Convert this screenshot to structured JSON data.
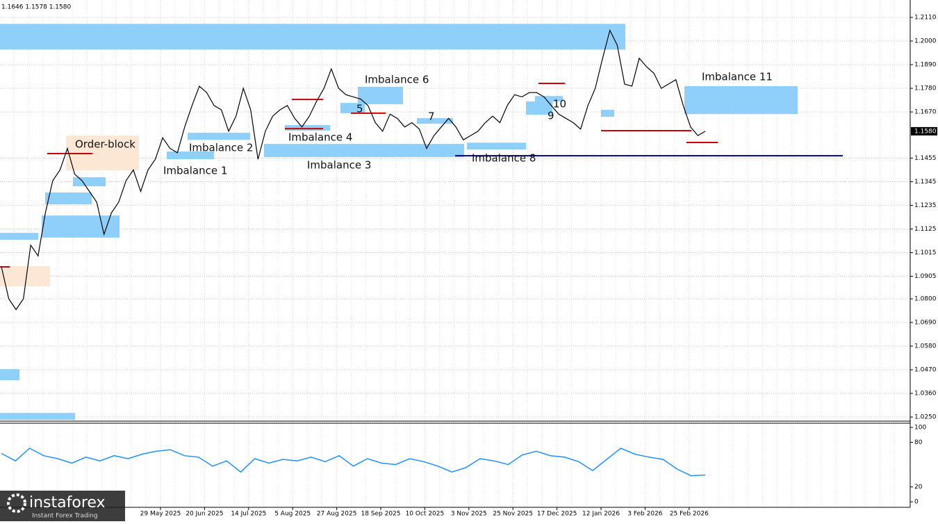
{
  "header": "1.1646 1.1578 1.1580",
  "brand": {
    "name": "instaforex",
    "tagline": "Instant Forex Trading"
  },
  "chart_data": [
    {
      "type": "line",
      "color": "#000000",
      "grid": true,
      "ylim": [
        1.0234,
        1.2191
      ],
      "yticks": [
        {
          "value": 1.211,
          "label": "1.2110"
        },
        {
          "value": 1.2,
          "label": "1.2000"
        },
        {
          "value": 1.189,
          "label": "1.1890"
        },
        {
          "value": 1.178,
          "label": "1.1780"
        },
        {
          "value": 1.167,
          "label": "1.1670"
        },
        1.1455,
        1.1345,
        1.1235,
        1.1125,
        1.1015,
        1.0905,
        {
          "value": 1.08,
          "label": "1.0800"
        },
        {
          "value": 1.069,
          "label": "1.0690"
        },
        {
          "value": 1.058,
          "label": "1.0580"
        },
        {
          "value": 1.047,
          "label": "1.0470"
        },
        {
          "value": 1.036,
          "label": "1.0360"
        },
        {
          "value": 1.025,
          "label": "1.0250"
        }
      ],
      "last_price": {
        "value": 1.158,
        "label": "1.1580"
      },
      "date_labels": [
        "29 May 2025",
        "20 Jun 2025",
        "14 Jul 2025",
        "5 Aug 2025",
        "27 Aug 2025",
        "18 Sep 2025",
        "10 Oct 2025",
        "3 Nov 2025",
        "25 Nov 2025",
        "17 Dec 2025",
        "12 Jan 2026",
        "3 Feb 2026",
        "25 Feb 2026"
      ],
      "values": [
        1.095,
        1.08,
        1.075,
        1.08,
        1.105,
        1.1,
        1.12,
        1.135,
        1.14,
        1.15,
        1.138,
        1.135,
        1.13,
        1.125,
        1.11,
        1.12,
        1.125,
        1.135,
        1.14,
        1.13,
        1.14,
        1.145,
        1.155,
        1.15,
        1.148,
        1.16,
        1.17,
        1.179,
        1.176,
        1.17,
        1.168,
        1.158,
        1.165,
        1.178,
        1.168,
        1.145,
        1.158,
        1.165,
        1.168,
        1.17,
        1.164,
        1.16,
        1.165,
        1.172,
        1.178,
        1.187,
        1.178,
        1.175,
        1.174,
        1.173,
        1.17,
        1.162,
        1.158,
        1.166,
        1.164,
        1.16,
        1.162,
        1.159,
        1.15,
        1.156,
        1.16,
        1.164,
        1.16,
        1.154,
        1.156,
        1.158,
        1.162,
        1.165,
        1.162,
        1.17,
        1.175,
        1.174,
        1.176,
        1.176,
        1.174,
        1.17,
        1.166,
        1.164,
        1.162,
        1.159,
        1.17,
        1.178,
        1.192,
        1.205,
        1.198,
        1.18,
        1.179,
        1.192,
        1.188,
        1.185,
        1.178,
        1.18,
        1.182,
        1.17,
        1.16,
        1.156,
        1.158
      ],
      "zones": [
        {
          "low": 1.196,
          "high": 1.208,
          "color": "#8fd0fa"
        },
        {
          "low": 1.166,
          "high": 1.179,
          "color": "#8fd0fa",
          "label": "Imbalance 11"
        },
        {
          "low": 1.1398,
          "high": 1.156,
          "color": "#fbe7d3",
          "label": "Order-block"
        },
        {
          "low": 1.0858,
          "high": 1.0952,
          "color": "#fbe7d3"
        },
        {
          "low": 1.145,
          "high": 1.1486,
          "color": "#8fd0fa",
          "label": "Imbalance 1"
        },
        {
          "low": 1.154,
          "high": 1.1573,
          "color": "#8fd0fa",
          "label": "Imbalance 2"
        },
        {
          "low": 1.146,
          "high": 1.1521,
          "color": "#8fd0fa",
          "label": "Imbalance 3"
        },
        {
          "low": 1.1583,
          "high": 1.1609,
          "color": "#8fd0fa",
          "label": "Imbalance 4"
        },
        {
          "low": 1.1706,
          "high": 1.1787,
          "color": "#8fd0fa",
          "label": "Imbalance 6"
        },
        {
          "low": 1.1664,
          "high": 1.1712,
          "color": "#8fd0fa",
          "label": "5"
        },
        {
          "low": 1.1615,
          "high": 1.1641,
          "color": "#8fd0fa",
          "label": "7"
        },
        {
          "low": 1.1495,
          "high": 1.1527,
          "color": "#8fd0fa",
          "label": "Imbalance 8"
        },
        {
          "low": 1.1657,
          "high": 1.1719,
          "color": "#8fd0fa",
          "label": "9"
        },
        {
          "low": 1.1719,
          "high": 1.1744,
          "color": "#8fd0fa",
          "label": "10"
        },
        {
          "low": 1.1324,
          "high": 1.1366,
          "color": "#8fd0fa"
        },
        {
          "low": 1.124,
          "high": 1.1295,
          "color": "#8fd0fa"
        },
        {
          "low": 1.1085,
          "high": 1.1188,
          "color": "#8fd0fa"
        },
        {
          "low": 1.1075,
          "high": 1.1107,
          "color": "#8fd0fa"
        },
        {
          "low": 1.0421,
          "high": 1.0473,
          "color": "#8fd0fa"
        },
        {
          "low": 1.0237,
          "high": 1.0269,
          "color": "#8fd0fa"
        },
        {
          "low": 1.1647,
          "high": 1.168,
          "color": "#8fd0fa"
        }
      ],
      "levels": [
        {
          "value": 1.1476,
          "color": "#cc0000"
        },
        {
          "value": 1.1728,
          "color": "#cc0000"
        },
        {
          "value": 1.1592,
          "color": "#cc0000"
        },
        {
          "value": 1.1664,
          "color": "#cc0000"
        },
        {
          "value": 1.1803,
          "color": "#cc0000"
        },
        {
          "value": 1.1583,
          "color": "#cc0000"
        },
        {
          "value": 1.1528,
          "color": "#cc0000"
        },
        {
          "value": 1.0949,
          "color": "#cc0000"
        },
        {
          "value": 1.1466,
          "color": "#000080"
        }
      ]
    },
    {
      "type": "line",
      "color": "#1e90ff",
      "ylim": [
        -7.4,
        105.6
      ],
      "yticks": [
        100,
        80,
        20,
        0
      ],
      "values": [
        65,
        55,
        72,
        62,
        58,
        52,
        60,
        55,
        62,
        58,
        64,
        68,
        70,
        62,
        60,
        48,
        55,
        40,
        58,
        52,
        57,
        55,
        60,
        54,
        62,
        48,
        58,
        52,
        50,
        58,
        54,
        48,
        40,
        46,
        58,
        55,
        50,
        63,
        68,
        62,
        60,
        54,
        42,
        57,
        72,
        64,
        60,
        57,
        44,
        35,
        36
      ]
    }
  ]
}
